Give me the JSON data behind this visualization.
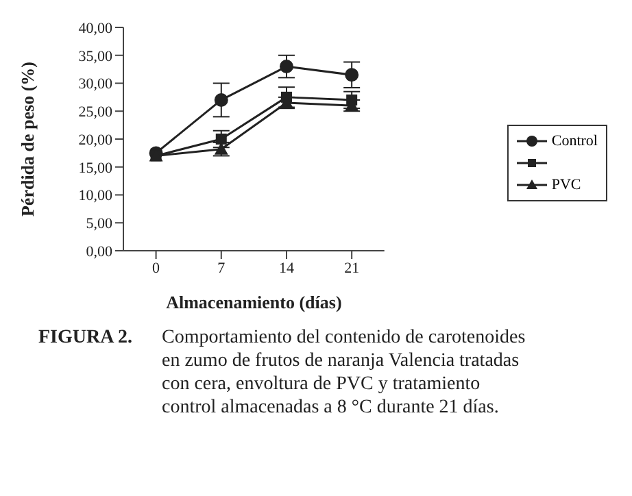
{
  "chart_data": {
    "type": "line",
    "title": "FIGURA 2.",
    "xlabel": "Almacenamiento (días)",
    "ylabel": "Pérdida de peso (%)",
    "annotations": [
      "Comportamiento del contenido de carotenoides en zumo de frutos de naranja Valencia tratadas con cera, envoltura de PVC y tratamiento control almacenadas a 8 °C durante 21 días."
    ],
    "categories": [
      "0",
      "7",
      "14",
      "21"
    ],
    "series": [
      {
        "name": "Control",
        "color": "#222222",
        "marker": "circle",
        "values": [
          17.5,
          27,
          33,
          31.5
        ],
        "errors": [
          null,
          3,
          2,
          2.3
        ]
      },
      {
        "color": "#222222",
        "marker": "square",
        "values": [
          17,
          20,
          27.5,
          27
        ],
        "errors": [
          null,
          1.5,
          1.8,
          1.5
        ]
      },
      {
        "name": "PVC",
        "color": "#222222",
        "marker": "triangle",
        "values": [
          17,
          18.2,
          26.5,
          26
        ],
        "errors": [
          null,
          1.2,
          1,
          1
        ]
      }
    ],
    "ylim": [
      0,
      40
    ],
    "yticks": [
      {
        "value": 0,
        "label": "0,00"
      },
      {
        "value": 5,
        "label": "5,00"
      },
      {
        "value": 10,
        "label": "10,00"
      },
      {
        "value": 15,
        "label": "15,00"
      },
      {
        "value": 20,
        "label": "20,00"
      },
      {
        "value": 25,
        "label": "25,00"
      },
      {
        "value": 30,
        "label": "30,00"
      },
      {
        "value": 35,
        "label": "35,00"
      },
      {
        "value": 40,
        "label": "40,00"
      }
    ],
    "grid": false,
    "legend": "right",
    "line_style": "solid"
  }
}
